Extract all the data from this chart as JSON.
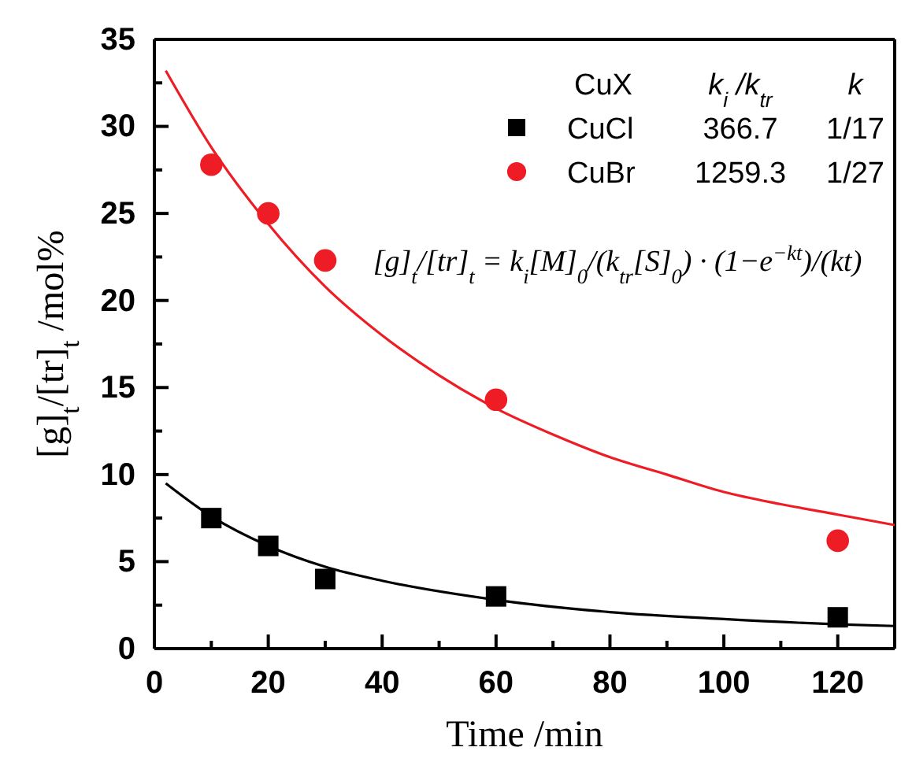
{
  "chart_data": {
    "type": "scatter",
    "xlabel": "Time /min",
    "ylabel": "[g]$_{t}$/[tr]$_{t}$ /mol%",
    "legend": "top right",
    "legend_title": "CuX",
    "xlim": [
      0,
      130
    ],
    "ylim": [
      0,
      35
    ],
    "xticks": [
      0,
      {
        "value": 10,
        "label": null
      },
      20,
      {
        "value": 30,
        "label": null
      },
      40,
      {
        "value": 50,
        "label": null
      },
      60,
      {
        "value": 70,
        "label": null
      },
      80,
      {
        "value": 90,
        "label": null
      },
      100,
      {
        "value": 110,
        "label": null
      },
      120
    ],
    "yticks": [
      0,
      {
        "value": 2.5,
        "label": null
      },
      5,
      {
        "value": 7.5,
        "label": null
      },
      10,
      {
        "value": 12.5,
        "label": null
      },
      15,
      {
        "value": 17.5,
        "label": null
      },
      20,
      {
        "value": 22.5,
        "label": null
      },
      25,
      {
        "value": 27.5,
        "label": null
      },
      30,
      {
        "value": 32.5,
        "label": null
      },
      35
    ],
    "series": [
      {
        "name": "CuCl",
        "marker": "square",
        "color": "#000000",
        "x": [
          10,
          20,
          30,
          60,
          120
        ],
        "values": [
          7.5,
          5.9,
          4.0,
          3.0,
          1.8
        ]
      },
      {
        "name": "CuBr",
        "marker": "circle",
        "color": "#ee1c25",
        "x": [
          10,
          20,
          30,
          60,
          120
        ],
        "values": [
          27.8,
          25.0,
          22.3,
          14.3,
          6.2
        ]
      },
      {
        "type": "line",
        "color": "#000000",
        "x": [
          2,
          10,
          20,
          30,
          40,
          60,
          80,
          100,
          120,
          130
        ],
        "values": [
          9.5,
          7.6,
          5.9,
          4.7,
          3.9,
          2.8,
          2.1,
          1.7,
          1.4,
          1.3
        ]
      },
      {
        "type": "line",
        "color": "#ee1c25",
        "x": [
          2,
          10,
          20,
          30,
          40,
          50,
          60,
          70,
          80,
          90,
          100,
          110,
          120,
          130
        ],
        "values": [
          33.2,
          28.8,
          24.4,
          20.8,
          18.0,
          15.7,
          13.8,
          12.3,
          11.0,
          10.0,
          9.0,
          8.3,
          7.7,
          7.1
        ]
      }
    ],
    "annotations": [
      "k$_{i}$ /k$_{tr}$",
      "k",
      "366.7",
      "1/17",
      "1259.3",
      "1/27",
      "[g]$_{t}$/[tr]$_{t}$ = k$_{i}$[M]$_{0}$/(k$_{tr}$[S]$_{0}$) · (1−e$^{−kt}$)/(kt)"
    ]
  }
}
